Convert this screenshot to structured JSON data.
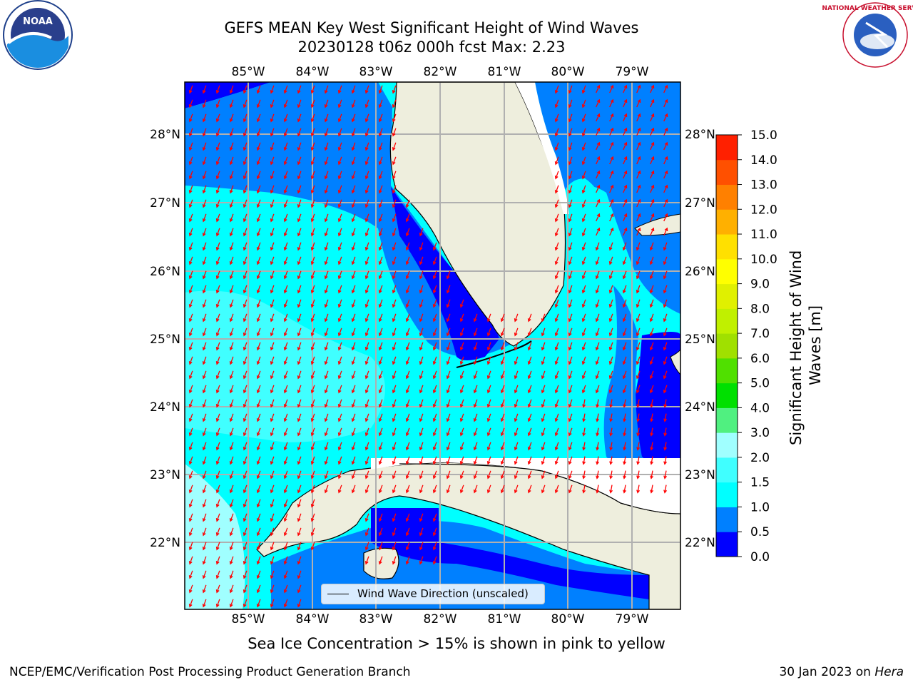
{
  "title": {
    "line1": "GEFS MEAN Key West Significant Height of Wind Waves",
    "line2": "20230128 t06z 000h fcst   Max: 2.23"
  },
  "map": {
    "lon_labels": [
      "85°W",
      "84°W",
      "83°W",
      "82°W",
      "81°W",
      "80°W",
      "79°W"
    ],
    "lat_labels": [
      "28°N",
      "27°N",
      "26°N",
      "25°N",
      "24°N",
      "23°N",
      "22°N"
    ],
    "legend_entry": "Wind Wave Direction (unscaled)",
    "colors": {
      "land": "#eeeedd",
      "band_0_0.5": "#0000ff",
      "band_0.5_1.0": "#0080ff",
      "band_1.0_1.5": "#00ffff",
      "band_1.5_2.0": "#40ffff",
      "band_2.0_3.0": "#a0ffff",
      "arrow": "#ff0000",
      "grid": "#b0b0b0"
    }
  },
  "colorbar": {
    "label": "Significant Height of Wind Waves [m]",
    "label_line1": "Significant Height of Wind",
    "label_line2": "Waves [m]",
    "ticks": [
      "0.0",
      "0.5",
      "1.0",
      "1.5",
      "2.0",
      "3.0",
      "4.0",
      "5.0",
      "6.0",
      "7.0",
      "8.0",
      "9.0",
      "10.0",
      "11.0",
      "12.0",
      "13.0",
      "14.0",
      "15.0"
    ],
    "colors": [
      "#0000ff",
      "#0080ff",
      "#00ffff",
      "#40ffff",
      "#a0ffff",
      "#50f080",
      "#00e000",
      "#50e000",
      "#a0e000",
      "#c0f000",
      "#e0f000",
      "#ffff00",
      "#ffe000",
      "#ffb000",
      "#ff8000",
      "#ff5000",
      "#ff2000"
    ]
  },
  "logos": {
    "left": "NOAA",
    "right": "NATIONAL WEATHER SERVICE"
  },
  "footnote": "Sea Ice Concentration > 15% is shown in pink to yellow",
  "credit_left": "NCEP/EMC/Verification Post Processing Product Generation Branch",
  "credit_right_prefix": "30 Jan 2023 on ",
  "credit_right_host": "Hera"
}
